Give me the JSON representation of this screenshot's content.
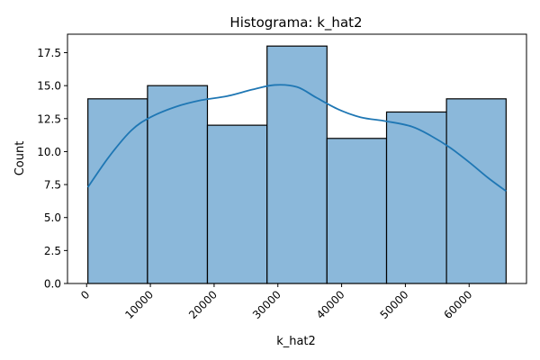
{
  "chart_data": {
    "type": "bar",
    "subtype": "histogram with kde line",
    "title": "Histograma: k_hat2",
    "xlabel": "k_hat2",
    "ylabel": "Count",
    "bins": [
      {
        "x0": 200,
        "x1": 9550,
        "count": 14
      },
      {
        "x0": 9550,
        "x1": 18950,
        "count": 15
      },
      {
        "x0": 18950,
        "x1": 28300,
        "count": 12
      },
      {
        "x0": 28300,
        "x1": 37700,
        "count": 18
      },
      {
        "x0": 37700,
        "x1": 47050,
        "count": 11
      },
      {
        "x0": 47050,
        "x1": 56450,
        "count": 13
      },
      {
        "x0": 56450,
        "x1": 65800,
        "count": 14
      }
    ],
    "kde": {
      "x": [
        200,
        3500,
        7000,
        10000,
        14000,
        18000,
        22000,
        26000,
        29500,
        33000,
        36000,
        39500,
        43000,
        47000,
        51000,
        54000,
        57000,
        60000,
        63000,
        65800
      ],
      "y": [
        7.3,
        9.6,
        11.6,
        12.6,
        13.4,
        13.9,
        14.2,
        14.7,
        15.05,
        14.9,
        14.1,
        13.2,
        12.6,
        12.3,
        11.9,
        11.2,
        10.3,
        9.2,
        8.0,
        7.0
      ]
    },
    "xlim": [
      -3000,
      69000
    ],
    "ylim": [
      0,
      18.9
    ],
    "xticks": [
      "0",
      "10000",
      "20000",
      "30000",
      "40000",
      "50000",
      "60000"
    ],
    "xtick_values": [
      0,
      10000,
      20000,
      30000,
      40000,
      50000,
      60000
    ],
    "yticks": [
      "0.0",
      "2.5",
      "5.0",
      "7.5",
      "10.0",
      "12.5",
      "15.0",
      "17.5"
    ],
    "ytick_values": [
      0,
      2.5,
      5,
      7.5,
      10,
      12.5,
      15,
      17.5
    ],
    "xtick_rotation_deg": 45,
    "grid": false,
    "legend": "none",
    "colors": {
      "bar_fill": "#8bb8da",
      "bar_edge": "#000000",
      "kde_line": "#1f77b4"
    }
  }
}
